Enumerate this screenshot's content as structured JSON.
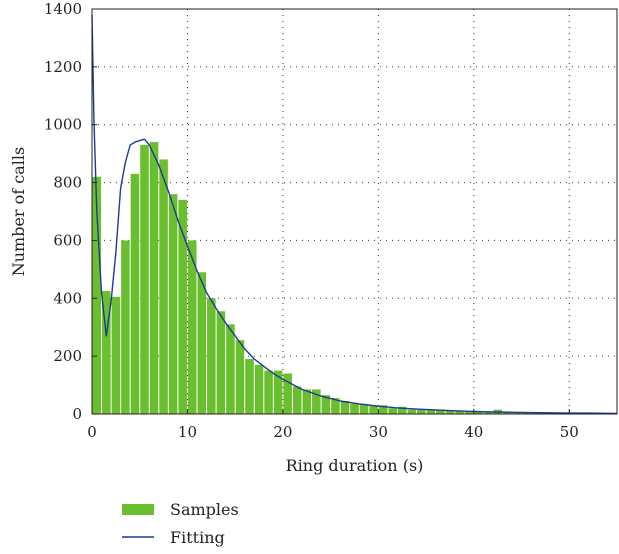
{
  "chart_data": {
    "type": "bar",
    "title": "",
    "xlabel": "Ring duration (s)",
    "ylabel": "Number of calls",
    "xlim": [
      0,
      55
    ],
    "ylim": [
      0,
      1400
    ],
    "xticks": [
      0,
      10,
      20,
      30,
      40,
      50
    ],
    "yticks": [
      0,
      200,
      400,
      600,
      800,
      1000,
      1200,
      1400
    ],
    "grid": true,
    "legend_position": "bottom-left",
    "series": [
      {
        "name": "Samples",
        "kind": "bar",
        "color": "#6abf2e",
        "bin_width": 1,
        "x": [
          0,
          1,
          2,
          3,
          4,
          5,
          6,
          7,
          8,
          9,
          10,
          11,
          12,
          13,
          14,
          15,
          16,
          17,
          18,
          19,
          20,
          21,
          22,
          23,
          24,
          25,
          26,
          27,
          28,
          29,
          30,
          31,
          32,
          33,
          34,
          35,
          36,
          37,
          38,
          39,
          40,
          41,
          42,
          43,
          44,
          45,
          46,
          47,
          48,
          49,
          50,
          51,
          52,
          53,
          54
        ],
        "values": [
          820,
          425,
          405,
          600,
          830,
          930,
          940,
          880,
          760,
          740,
          600,
          490,
          400,
          355,
          310,
          255,
          190,
          170,
          150,
          150,
          140,
          95,
          85,
          85,
          65,
          55,
          45,
          35,
          35,
          30,
          30,
          20,
          25,
          15,
          15,
          15,
          15,
          12,
          10,
          10,
          8,
          8,
          15,
          6,
          6,
          5,
          5,
          5,
          5,
          5,
          4,
          4,
          3,
          3,
          3
        ]
      },
      {
        "name": "Fitting",
        "kind": "line",
        "color": "#1f3a93",
        "x": [
          0,
          0.2,
          0.5,
          1,
          1.5,
          2,
          2.5,
          3,
          3.5,
          4,
          4.5,
          5,
          5.5,
          6,
          7,
          8,
          9,
          10,
          11,
          12,
          13,
          14,
          15,
          16,
          17,
          18,
          19,
          20,
          22,
          24,
          26,
          28,
          30,
          32,
          34,
          36,
          38,
          40,
          42,
          44,
          46,
          48,
          50,
          52,
          55
        ],
        "values": [
          1380,
          1020,
          700,
          420,
          270,
          390,
          560,
          780,
          870,
          930,
          940,
          945,
          950,
          930,
          860,
          770,
          670,
          580,
          495,
          420,
          365,
          315,
          270,
          225,
          190,
          165,
          140,
          120,
          85,
          62,
          45,
          35,
          27,
          21,
          17,
          14,
          11,
          9,
          7,
          6,
          5,
          4,
          3,
          3,
          2
        ]
      }
    ]
  }
}
